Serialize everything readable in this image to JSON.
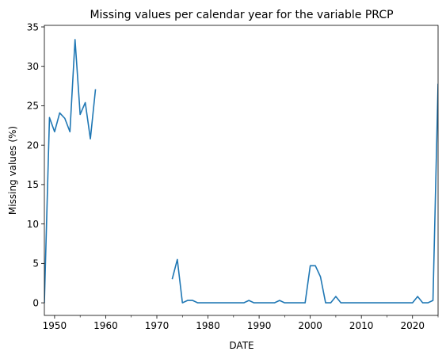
{
  "chart_data": {
    "type": "line",
    "title": "Missing values per calendar year for the variable PRCP",
    "xlabel": "DATE",
    "ylabel": "Missing values (%)",
    "xlim": [
      1948,
      2025
    ],
    "ylim": [
      -1.6,
      35.2
    ],
    "xticks": [
      1950,
      1960,
      1970,
      1980,
      1990,
      2000,
      2010,
      2020
    ],
    "yticks": [
      0,
      5,
      10,
      15,
      20,
      25,
      30,
      35
    ],
    "grid": false,
    "legend": "none",
    "line_color": "#1f77b4",
    "series": [
      {
        "segments": [
          [
            [
              1948,
              0
            ],
            [
              1949,
              23.5
            ],
            [
              1950,
              21.7
            ],
            [
              1951,
              24.1
            ],
            [
              1952,
              23.4
            ],
            [
              1953,
              21.7
            ],
            [
              1954,
              33.4
            ],
            [
              1955,
              23.9
            ],
            [
              1956,
              25.4
            ],
            [
              1957,
              20.8
            ],
            [
              1958,
              27.1
            ]
          ],
          [
            [
              1973,
              3.0
            ],
            [
              1974,
              5.5
            ],
            [
              1975,
              0
            ],
            [
              1976,
              0.3
            ],
            [
              1977,
              0.3
            ],
            [
              1978,
              0
            ],
            [
              1979,
              0
            ],
            [
              1980,
              0
            ],
            [
              1981,
              0
            ],
            [
              1982,
              0
            ],
            [
              1983,
              0
            ],
            [
              1984,
              0
            ],
            [
              1985,
              0
            ],
            [
              1986,
              0
            ],
            [
              1987,
              0
            ],
            [
              1988,
              0.3
            ],
            [
              1989,
              0
            ],
            [
              1990,
              0
            ],
            [
              1991,
              0
            ],
            [
              1992,
              0
            ],
            [
              1993,
              0
            ],
            [
              1994,
              0.3
            ],
            [
              1995,
              0
            ],
            [
              1996,
              0
            ],
            [
              1997,
              0
            ],
            [
              1998,
              0
            ],
            [
              1999,
              0
            ],
            [
              2000,
              4.7
            ],
            [
              2001,
              4.7
            ],
            [
              2002,
              3.3
            ],
            [
              2003,
              0
            ],
            [
              2004,
              0
            ],
            [
              2005,
              0.8
            ],
            [
              2006,
              0
            ],
            [
              2007,
              0
            ],
            [
              2008,
              0
            ],
            [
              2009,
              0
            ],
            [
              2010,
              0
            ],
            [
              2011,
              0
            ],
            [
              2012,
              0
            ],
            [
              2013,
              0
            ],
            [
              2014,
              0
            ],
            [
              2015,
              0
            ],
            [
              2016,
              0
            ],
            [
              2017,
              0
            ],
            [
              2018,
              0
            ],
            [
              2019,
              0
            ],
            [
              2020,
              0
            ],
            [
              2021,
              0.8
            ],
            [
              2022,
              0
            ],
            [
              2023,
              0
            ],
            [
              2024,
              0.3
            ],
            [
              2025,
              27.8
            ]
          ]
        ]
      }
    ]
  }
}
